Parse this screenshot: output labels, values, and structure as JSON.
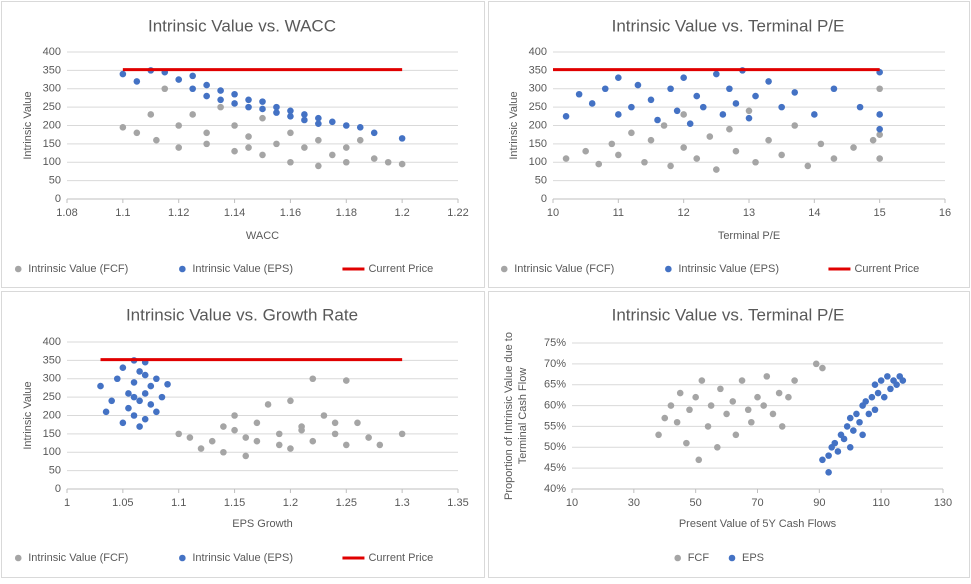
{
  "chart_data": [
    {
      "type": "scatter",
      "title": "Intrinsic Value vs. WACC",
      "x_label": "WACC",
      "y_label": [
        "Intrinsic Value"
      ],
      "xlim": [
        1.08,
        1.22
      ],
      "xticks": [
        1.08,
        1.1,
        1.12,
        1.14,
        1.16,
        1.18,
        1.2,
        1.22
      ],
      "ylim": [
        0,
        400
      ],
      "yticks": [
        0,
        50,
        100,
        150,
        200,
        250,
        300,
        350,
        400
      ],
      "grid": true,
      "legend": "bottom",
      "series": [
        {
          "name": "Intrinsic Value (FCF)",
          "color": "#a5a5a5",
          "mode": "markers",
          "x": [
            1.1,
            1.105,
            1.11,
            1.112,
            1.115,
            1.12,
            1.12,
            1.125,
            1.13,
            1.13,
            1.135,
            1.14,
            1.14,
            1.145,
            1.15,
            1.15,
            1.155,
            1.16,
            1.16,
            1.165,
            1.17,
            1.17,
            1.175,
            1.18,
            1.18,
            1.185,
            1.19,
            1.195,
            1.2,
            1.145
          ],
          "values": [
            195,
            180,
            230,
            160,
            300,
            140,
            200,
            230,
            150,
            180,
            250,
            130,
            200,
            170,
            120,
            220,
            150,
            100,
            180,
            140,
            90,
            160,
            120,
            140,
            100,
            160,
            110,
            100,
            95,
            140
          ]
        },
        {
          "name": "Intrinsic Value (EPS)",
          "color": "#4472c4",
          "mode": "markers",
          "x": [
            1.1,
            1.105,
            1.11,
            1.115,
            1.12,
            1.125,
            1.125,
            1.13,
            1.13,
            1.135,
            1.14,
            1.14,
            1.145,
            1.15,
            1.15,
            1.155,
            1.16,
            1.16,
            1.165,
            1.17,
            1.17,
            1.175,
            1.18,
            1.185,
            1.19,
            1.2,
            1.135,
            1.145,
            1.155,
            1.165
          ],
          "values": [
            340,
            320,
            350,
            345,
            325,
            335,
            300,
            310,
            280,
            295,
            285,
            260,
            270,
            265,
            245,
            250,
            240,
            225,
            230,
            220,
            205,
            210,
            200,
            195,
            180,
            165,
            270,
            250,
            235,
            215
          ]
        },
        {
          "name": "Current Price",
          "color": "#e00000",
          "mode": "line",
          "x": [
            1.1,
            1.2
          ],
          "values": [
            352,
            352
          ]
        }
      ]
    },
    {
      "type": "scatter",
      "title": "Intrinsic Value vs. Terminal P/E",
      "x_label": "Terminal P/E",
      "y_label": [
        "Intrinsic Value"
      ],
      "xlim": [
        10,
        16
      ],
      "xticks": [
        10,
        11,
        12,
        13,
        14,
        15,
        16
      ],
      "ylim": [
        0,
        400
      ],
      "yticks": [
        0,
        50,
        100,
        150,
        200,
        250,
        300,
        350,
        400
      ],
      "grid": true,
      "legend": "bottom",
      "series": [
        {
          "name": "Intrinsic Value (FCF)",
          "color": "#a5a5a5",
          "mode": "markers",
          "x": [
            10.2,
            10.5,
            10.7,
            10.9,
            11,
            11.2,
            11.4,
            11.5,
            11.7,
            11.8,
            12,
            12,
            12.2,
            12.4,
            12.5,
            12.7,
            12.8,
            13,
            13.1,
            13.3,
            13.5,
            13.7,
            13.9,
            14.1,
            14.3,
            14.6,
            14.9,
            15,
            15,
            15
          ],
          "values": [
            110,
            130,
            95,
            150,
            120,
            180,
            100,
            160,
            200,
            90,
            140,
            230,
            110,
            170,
            80,
            190,
            130,
            240,
            100,
            160,
            120,
            200,
            90,
            150,
            110,
            140,
            160,
            110,
            175,
            300
          ]
        },
        {
          "name": "Intrinsic Value (EPS)",
          "color": "#4472c4",
          "mode": "markers",
          "x": [
            10.2,
            10.4,
            10.6,
            10.8,
            11,
            11,
            11.2,
            11.3,
            11.5,
            11.6,
            11.8,
            11.9,
            12,
            12.1,
            12.2,
            12.3,
            12.5,
            12.6,
            12.7,
            12.8,
            12.9,
            13,
            13.1,
            13.3,
            13.5,
            13.7,
            14,
            14.3,
            14.7,
            15,
            15,
            15
          ],
          "values": [
            225,
            285,
            260,
            300,
            230,
            330,
            250,
            310,
            270,
            215,
            300,
            240,
            330,
            205,
            280,
            250,
            340,
            230,
            300,
            260,
            350,
            220,
            280,
            320,
            250,
            290,
            230,
            300,
            250,
            345,
            230,
            190
          ]
        },
        {
          "name": "Current Price",
          "color": "#e00000",
          "mode": "line",
          "x": [
            10,
            15
          ],
          "values": [
            352,
            352
          ]
        }
      ]
    },
    {
      "type": "scatter",
      "title": "Intrinsic Value vs. Growth Rate",
      "x_label": "EPS Growth",
      "y_label": [
        "Intrinsic Value"
      ],
      "xlim": [
        1,
        1.35
      ],
      "xticks": [
        1,
        1.05,
        1.1,
        1.15,
        1.2,
        1.25,
        1.3,
        1.35
      ],
      "ylim": [
        0,
        400
      ],
      "yticks": [
        0,
        50,
        100,
        150,
        200,
        250,
        300,
        350,
        400
      ],
      "grid": true,
      "legend": "bottom",
      "series": [
        {
          "name": "Intrinsic Value (FCF)",
          "color": "#a5a5a5",
          "mode": "markers",
          "x": [
            1.1,
            1.11,
            1.12,
            1.13,
            1.14,
            1.15,
            1.15,
            1.16,
            1.17,
            1.17,
            1.18,
            1.19,
            1.2,
            1.2,
            1.21,
            1.22,
            1.22,
            1.23,
            1.24,
            1.25,
            1.25,
            1.26,
            1.27,
            1.28,
            1.3,
            1.16,
            1.19,
            1.21,
            1.24,
            1.14
          ],
          "values": [
            150,
            140,
            110,
            130,
            100,
            160,
            200,
            90,
            180,
            130,
            230,
            150,
            110,
            240,
            170,
            300,
            130,
            200,
            150,
            295,
            120,
            180,
            140,
            120,
            150,
            140,
            120,
            160,
            180,
            170
          ]
        },
        {
          "name": "Intrinsic Value (EPS)",
          "color": "#4472c4",
          "mode": "markers",
          "x": [
            1.03,
            1.035,
            1.04,
            1.045,
            1.05,
            1.05,
            1.055,
            1.055,
            1.06,
            1.06,
            1.06,
            1.065,
            1.065,
            1.07,
            1.07,
            1.07,
            1.075,
            1.075,
            1.08,
            1.08,
            1.085,
            1.09,
            1.06,
            1.065,
            1.07
          ],
          "values": [
            280,
            210,
            240,
            300,
            180,
            330,
            260,
            220,
            350,
            290,
            200,
            240,
            170,
            310,
            260,
            190,
            280,
            230,
            300,
            210,
            250,
            285,
            250,
            320,
            345
          ]
        },
        {
          "name": "Current Price",
          "color": "#e00000",
          "mode": "line",
          "x": [
            1.03,
            1.3
          ],
          "values": [
            352,
            352
          ]
        }
      ]
    },
    {
      "type": "scatter",
      "title": "Intrinsic Value vs. Terminal P/E",
      "x_label": "Present Value of 5Y Cash Flows",
      "y_label": [
        "Proportion of Intrinsic Value due to",
        "Terminal Cash Flow"
      ],
      "xlim": [
        10,
        130
      ],
      "xticks": [
        10,
        30,
        50,
        70,
        90,
        110,
        130
      ],
      "ylim": [
        40,
        75
      ],
      "yticks": [
        {
          "value": 40,
          "label": "40%"
        },
        {
          "value": 45,
          "label": "45%"
        },
        {
          "value": 50,
          "label": "50%"
        },
        {
          "value": 55,
          "label": "55%"
        },
        {
          "value": 60,
          "label": "60%"
        },
        {
          "value": 65,
          "label": "65%"
        },
        {
          "value": 70,
          "label": "70%"
        },
        {
          "value": 75,
          "label": "75%"
        }
      ],
      "grid": true,
      "legend": "bottom",
      "series": [
        {
          "name": "FCF",
          "color": "#a5a5a5",
          "mode": "markers",
          "x": [
            38,
            40,
            42,
            44,
            45,
            47,
            48,
            50,
            51,
            52,
            54,
            55,
            57,
            58,
            60,
            62,
            63,
            65,
            67,
            68,
            70,
            72,
            73,
            75,
            77,
            78,
            80,
            82,
            89,
            91
          ],
          "values": [
            53,
            57,
            60,
            56,
            63,
            51,
            59,
            62,
            47,
            66,
            55,
            60,
            50,
            64,
            58,
            61,
            53,
            66,
            59,
            56,
            62,
            60,
            67,
            58,
            63,
            55,
            62,
            66,
            70,
            69
          ]
        },
        {
          "name": "EPS",
          "color": "#4472c4",
          "mode": "markers",
          "x": [
            91,
            93,
            94,
            95,
            96,
            97,
            98,
            99,
            100,
            100,
            101,
            102,
            103,
            104,
            104,
            105,
            106,
            107,
            108,
            108,
            109,
            110,
            111,
            112,
            113,
            114,
            115,
            116,
            117,
            93
          ],
          "values": [
            47,
            48,
            50,
            51,
            49,
            53,
            52,
            55,
            50,
            57,
            54,
            58,
            56,
            60,
            53,
            61,
            58,
            62,
            59,
            65,
            63,
            66,
            62,
            67,
            64,
            66,
            65,
            67,
            66,
            44
          ]
        }
      ]
    }
  ]
}
